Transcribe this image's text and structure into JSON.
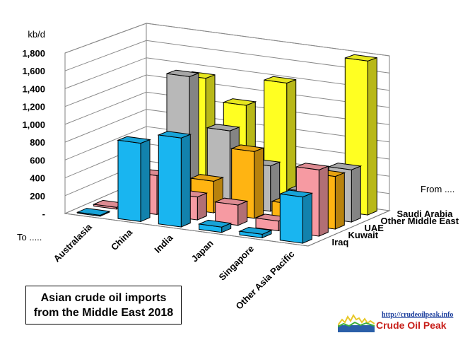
{
  "chart_data": {
    "type": "bar",
    "subtype": "3d-column",
    "title": "Asian crude oil imports from the Middle East 2018",
    "title_lines": [
      "Asian crude oil imports",
      "from the Middle East 2018"
    ],
    "ylabel": "kb/d",
    "ylim": [
      0,
      1800
    ],
    "yticks": [
      "-",
      "200",
      "400",
      "600",
      "800",
      "1,000",
      "1,200",
      "1,400",
      "1,600",
      "1,800"
    ],
    "grid": true,
    "categories": [
      "Australasia",
      "China",
      "India",
      "Japan",
      "Singapore",
      "Other Asia Pacific"
    ],
    "x_axis_caption": "To .....",
    "depth_axis_caption": "From ....",
    "series": [
      {
        "name": "Iraq",
        "color": "#19b5f0",
        "values": [
          10,
          880,
          1000,
          60,
          40,
          520
        ]
      },
      {
        "name": "Kuwait",
        "color": "#f69aa2",
        "values": [
          20,
          440,
          260,
          230,
          110,
          750
        ]
      },
      {
        "name": "UAE",
        "color": "#ffb412",
        "values": [
          0,
          0,
          360,
          760,
          220,
          600
        ]
      },
      {
        "name": "Other Middle East",
        "color": "#b8b8b8",
        "values": [
          0,
          1420,
          860,
          520,
          280,
          600
        ]
      },
      {
        "name": "Saudi Arabia",
        "color": "#ffff22",
        "values": [
          0,
          1330,
          1080,
          1400,
          120,
          1780
        ]
      }
    ]
  },
  "brand": {
    "url": "http://crudeoilpeak.info",
    "name": "Crude Oil Peak"
  }
}
